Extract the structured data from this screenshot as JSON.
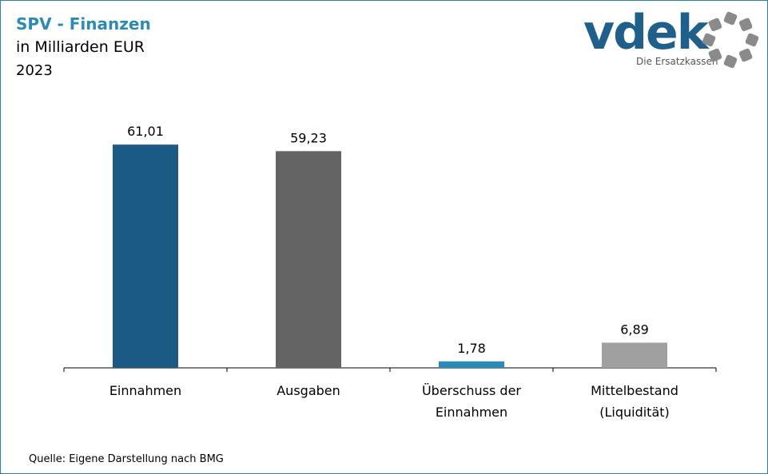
{
  "header": {
    "title": "SPV - Finanzen",
    "subtitle": "in Milliarden EUR",
    "year": "2023"
  },
  "logo": {
    "word": "vdek",
    "tagline": "Die Ersatzkassen"
  },
  "source": "Quelle: Eigene Darstellung nach BMG",
  "chart_data": {
    "type": "bar",
    "categories": [
      [
        "Einnahmen"
      ],
      [
        "Ausgaben"
      ],
      [
        "Überschuss der",
        "Einnahmen"
      ],
      [
        "Mittelbestand",
        "(Liquidität)"
      ]
    ],
    "values": [
      61.01,
      59.23,
      1.78,
      6.89
    ],
    "value_labels": [
      "61,01",
      "59,23",
      "1,78",
      "6,89"
    ],
    "colors": [
      "#1a5a85",
      "#646464",
      "#2a8ab8",
      "#a0a0a0"
    ],
    "ylim": [
      0,
      70
    ],
    "grid": false,
    "legend": "none"
  }
}
